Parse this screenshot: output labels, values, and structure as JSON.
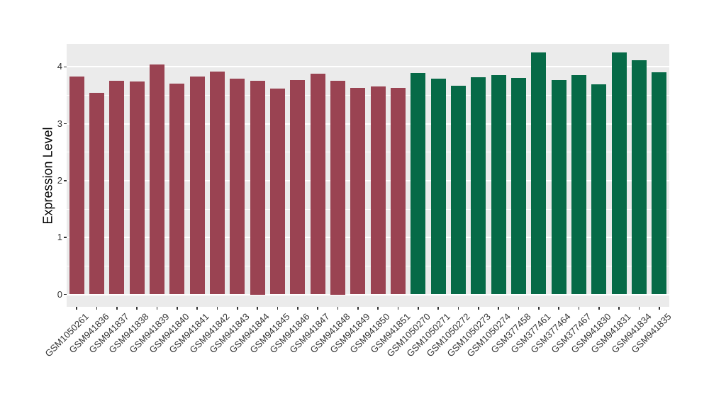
{
  "figure": {
    "background_color": "#FFFFFF",
    "panel_color": "#EBEBEB",
    "grid_color": "#FFFFFF",
    "tick_color": "#333333",
    "tick_label_color": "#333333",
    "axis_title_color": "#000000"
  },
  "chart_data": {
    "type": "bar",
    "title": "",
    "xlabel": "",
    "ylabel": "Expression Level",
    "ylim": [
      0,
      4.4
    ],
    "yticks": [
      0,
      1,
      2,
      3,
      4
    ],
    "grid": true,
    "legend": false,
    "group_colors": {
      "group1": "#9A4352",
      "group2": "#066A47"
    },
    "bars": [
      {
        "label": "GSM1050261",
        "value": 3.83,
        "group": "group1"
      },
      {
        "label": "GSM941836",
        "value": 3.54,
        "group": "group1"
      },
      {
        "label": "GSM941837",
        "value": 3.76,
        "group": "group1"
      },
      {
        "label": "GSM941838",
        "value": 3.74,
        "group": "group1"
      },
      {
        "label": "GSM941839",
        "value": 4.04,
        "group": "group1"
      },
      {
        "label": "GSM941840",
        "value": 3.7,
        "group": "group1"
      },
      {
        "label": "GSM941841",
        "value": 3.83,
        "group": "group1"
      },
      {
        "label": "GSM941842",
        "value": 3.92,
        "group": "group1"
      },
      {
        "label": "GSM941843",
        "value": 3.79,
        "group": "group1"
      },
      {
        "label": "GSM941844",
        "value": 3.75,
        "group": "group1"
      },
      {
        "label": "GSM941845",
        "value": 3.62,
        "group": "group1"
      },
      {
        "label": "GSM941846",
        "value": 3.77,
        "group": "group1"
      },
      {
        "label": "GSM941847",
        "value": 3.88,
        "group": "group1"
      },
      {
        "label": "GSM941848",
        "value": 3.75,
        "group": "group1"
      },
      {
        "label": "GSM941849",
        "value": 3.63,
        "group": "group1"
      },
      {
        "label": "GSM941850",
        "value": 3.66,
        "group": "group1"
      },
      {
        "label": "GSM941851",
        "value": 3.63,
        "group": "group1"
      },
      {
        "label": "GSM1050270",
        "value": 3.89,
        "group": "group2"
      },
      {
        "label": "GSM1050271",
        "value": 3.79,
        "group": "group2"
      },
      {
        "label": "GSM1050272",
        "value": 3.67,
        "group": "group2"
      },
      {
        "label": "GSM1050273",
        "value": 3.82,
        "group": "group2"
      },
      {
        "label": "GSM1050274",
        "value": 3.86,
        "group": "group2"
      },
      {
        "label": "GSM377458",
        "value": 3.8,
        "group": "group2"
      },
      {
        "label": "GSM377461",
        "value": 4.25,
        "group": "group2"
      },
      {
        "label": "GSM377464",
        "value": 3.77,
        "group": "group2"
      },
      {
        "label": "GSM377467",
        "value": 3.85,
        "group": "group2"
      },
      {
        "label": "GSM941830",
        "value": 3.69,
        "group": "group2"
      },
      {
        "label": "GSM941831",
        "value": 4.25,
        "group": "group2"
      },
      {
        "label": "GSM941834",
        "value": 4.12,
        "group": "group2"
      },
      {
        "label": "GSM941835",
        "value": 3.91,
        "group": "group2"
      }
    ]
  }
}
